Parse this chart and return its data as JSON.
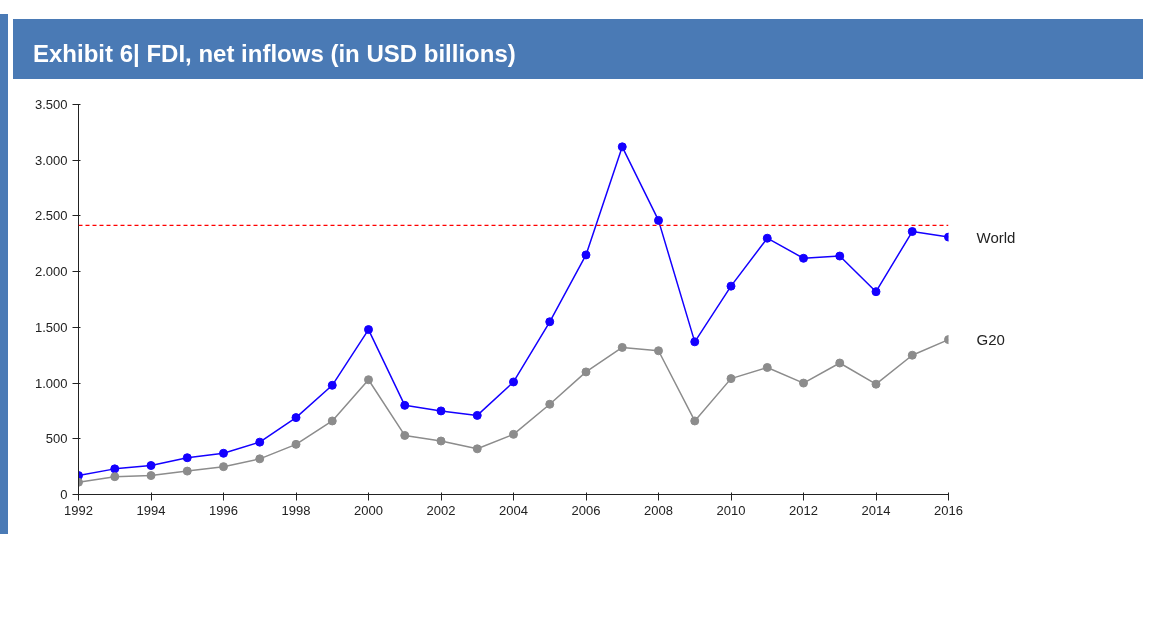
{
  "chart_data": {
    "type": "line",
    "title": "Exhibit 6| FDI, net inflows (in USD billions)",
    "x": [
      1992,
      1993,
      1994,
      1995,
      1996,
      1997,
      1998,
      1999,
      2000,
      2001,
      2002,
      2003,
      2004,
      2005,
      2006,
      2007,
      2008,
      2009,
      2010,
      2011,
      2012,
      2013,
      2014,
      2015,
      2016
    ],
    "series": [
      {
        "name": "World",
        "color": "#1400ff",
        "values": [
          170,
          230,
          260,
          330,
          370,
          470,
          690,
          980,
          1480,
          800,
          750,
          710,
          1010,
          1550,
          2150,
          3120,
          2460,
          1370,
          1870,
          2300,
          2120,
          2140,
          1820,
          2360,
          2310
        ]
      },
      {
        "name": "G20",
        "color": "#8c8c8c",
        "values": [
          110,
          160,
          170,
          210,
          250,
          320,
          450,
          660,
          1030,
          530,
          480,
          410,
          540,
          810,
          1100,
          1320,
          1290,
          660,
          1040,
          1140,
          1000,
          1180,
          990,
          1250,
          1390
        ]
      }
    ],
    "xlim": [
      1992,
      2016
    ],
    "xticks": [
      1992,
      1994,
      1996,
      1998,
      2000,
      2002,
      2004,
      2006,
      2008,
      2010,
      2012,
      2014,
      2016
    ],
    "ylim": [
      0,
      3500
    ],
    "yticks": [
      0,
      {
        "value": 500,
        "label": "500"
      },
      {
        "value": 1000,
        "label": "1.000"
      },
      {
        "value": 1500,
        "label": "1.500"
      },
      {
        "value": 2000,
        "label": "2.000"
      },
      {
        "value": 2500,
        "label": "2.500"
      },
      {
        "value": 3000,
        "label": "3.000"
      },
      {
        "value": 3500,
        "label": "3.500"
      }
    ],
    "ref_lines": [
      {
        "axis": "y",
        "value": 2415,
        "label": null,
        "color": "#ff0000",
        "line_style": "dashed"
      }
    ],
    "grid": false,
    "legend": false,
    "marker": "circle",
    "line_style": "solid"
  }
}
